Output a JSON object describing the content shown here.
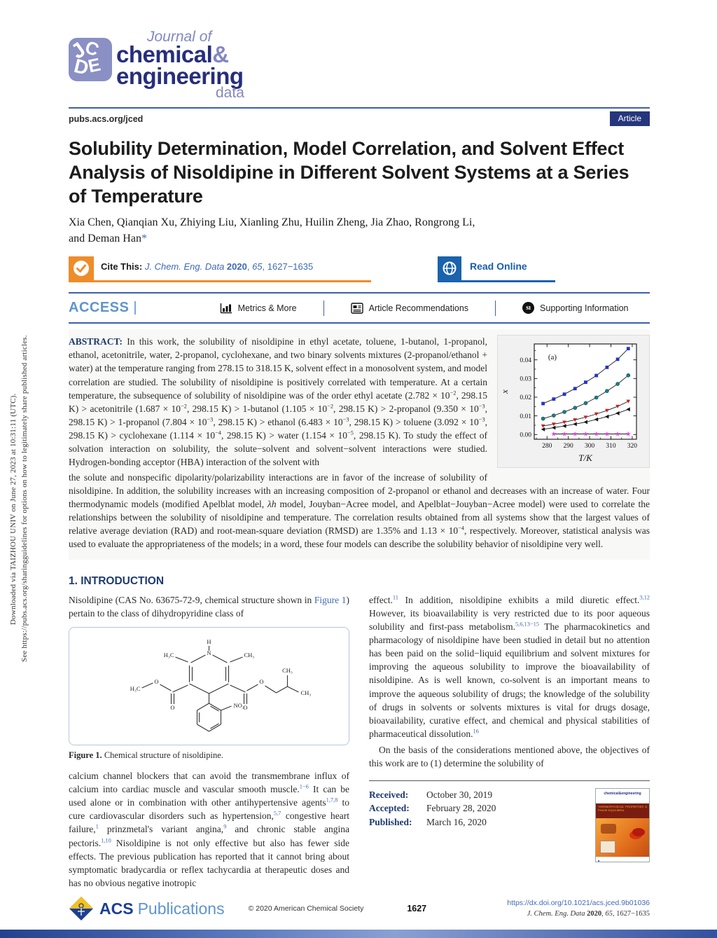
{
  "journal": {
    "icon_letters": {
      "j": "J",
      "c": "C",
      "e": "E",
      "d": "D"
    },
    "name_prefix": "Journal of",
    "name_word1": "chemical",
    "amp": "&",
    "name_word2": "engineering",
    "name_word3": "data",
    "site": "pubs.acs.org/jced",
    "badge": "Article"
  },
  "sidebar": {
    "line1": "Downloaded via TAIZHOU UNIV on June 27, 2023 at 10:31:11 (UTC).",
    "line2": "See https://pubs.acs.org/sharingguidelines for options on how to legitimately share published articles."
  },
  "article": {
    "title": "Solubility Determination, Model Correlation, and Solvent Effect Analysis of Nisoldipine in Different Solvent Systems at a Series of Temperature",
    "authors_line1": "Xia Chen, Qianqian Xu, Zhiying Liu, Xianling Zhu, Huilin Zheng, Jia Zhao, Rongrong Li,",
    "authors_line2": [
      {
        "x": "and Deman Han"
      },
      {
        "x": "*",
        "s": "link"
      }
    ]
  },
  "cite_bar": {
    "cite_label": "Cite This:",
    "cite_ref": [
      {
        "x": "J. Chem. Eng. Data ",
        "s": "i link"
      },
      {
        "x": "2020",
        "s": "b link"
      },
      {
        "x": ", ",
        "s": "link"
      },
      {
        "x": "65",
        "s": "i link"
      },
      {
        "x": ", 1627−1635",
        "s": "link"
      }
    ],
    "read_online": "Read Online"
  },
  "access_bar": {
    "access": "ACCESS",
    "pipe": "|",
    "metrics": "Metrics & More",
    "recommendations": "Article Recommendations",
    "supporting": "Supporting Information",
    "si_glyph": "sı"
  },
  "abstract": {
    "label": "ABSTRACT:",
    "part1": [
      {
        "x": " In this work, the solubility of nisoldipine in ethyl acetate, toluene, 1-butanol, 1-propanol, ethanol, acetonitrile, water, 2-propanol, cyclohexane, and two binary solvents mixtures (2-propanol/ethanol + water) at the temperature ranging from 278.15 to 318.15 K, solvent effect in a monosolvent system, and model correlation are studied. The solubility of nisoldipine is positively correlated with temperature. At a certain temperature, the subsequence of solubility of nisoldipine was of the order ethyl acetate (2.782 × 10"
      },
      {
        "x": "−2",
        "s": "sup"
      },
      {
        "x": ", 298.15 K) > acetonitrile (1.687 × 10"
      },
      {
        "x": "−2",
        "s": "sup"
      },
      {
        "x": ", 298.15 K) > 1-butanol (1.105 × 10"
      },
      {
        "x": "−2",
        "s": "sup"
      },
      {
        "x": ", 298.15 K) > 2-propanol (9.350 × 10"
      },
      {
        "x": "−3",
        "s": "sup"
      },
      {
        "x": ", 298.15 K) > 1-propanol (7.804 × 10"
      },
      {
        "x": "−3",
        "s": "sup"
      },
      {
        "x": ", 298.15 K) > ethanol (6.483 × 10"
      },
      {
        "x": "−3",
        "s": "sup"
      },
      {
        "x": ", 298.15 K) > toluene (3.092 × 10"
      },
      {
        "x": "−3",
        "s": "sup"
      },
      {
        "x": ", 298.15 K) > cyclohexane (1.114 × 10"
      },
      {
        "x": "−4",
        "s": "sup"
      },
      {
        "x": ", 298.15 K) > water (1.154 × 10"
      },
      {
        "x": "−5",
        "s": "sup"
      },
      {
        "x": ", 298.15 K). To study the effect of solvation interaction on solubility, the solute−solvent and solvent−solvent interactions were studied. Hydrogen-bonding acceptor (HBA) interaction of the solvent with"
      }
    ],
    "part2": [
      {
        "x": "the solute and nonspecific dipolarity/polarizability interactions are in favor of the increase of solubility of nisoldipine. In addition, the solubility increases with an increasing composition of 2-propanol or ethanol and decreases with an increase of water. Four thermodynamic models (modified Apelblat model, "
      },
      {
        "x": "λh",
        "s": "i"
      },
      {
        "x": " model, Jouyban−Acree model, and Apelblat−Jouyban−Acree model) were used to correlate the relationships between the solubility of nisoldipine and temperature. The correlation results obtained from all systems show that the largest values of relative average deviation (RAD) and root-mean-square deviation (RMSD) are 1.35% and 1.13 × 10"
      },
      {
        "x": "−4",
        "s": "sup"
      },
      {
        "x": ", respectively. Moreover, statistical analysis was used to evaluate the appropriateness of the models; in a word, these four models can describe the solubility behavior of nisoldipine very well."
      }
    ]
  },
  "chart_data": {
    "type": "line",
    "panel_label": "(a)",
    "xlabel": "T/K",
    "ylabel": "x",
    "xlim": [
      274,
      322
    ],
    "ylim": [
      -0.0025,
      0.0485
    ],
    "xticks": [
      280,
      290,
      300,
      310,
      320
    ],
    "xticks_minor": [
      275,
      285,
      295,
      305,
      315
    ],
    "yticks": [
      0.0,
      0.01,
      0.02,
      0.03,
      0.04
    ],
    "yticks_minor": [
      0.005,
      0.015,
      0.025,
      0.035,
      0.045
    ],
    "grid": false,
    "legend": "none",
    "x": [
      278.15,
      283.15,
      288.15,
      293.15,
      298.15,
      303.15,
      308.15,
      313.15,
      318.15
    ],
    "line_color": "#1a1a1a",
    "series": [
      {
        "name": "blue-squares",
        "marker": "square",
        "color": "#2433c8",
        "values": [
          0.0166,
          0.019,
          0.0216,
          0.0246,
          0.028,
          0.0316,
          0.036,
          0.0403,
          0.046
        ]
      },
      {
        "name": "teal-circles",
        "marker": "circle",
        "color": "#17808a",
        "values": [
          0.0085,
          0.0102,
          0.0121,
          0.0143,
          0.0168,
          0.0198,
          0.0233,
          0.0271,
          0.0317
        ]
      },
      {
        "name": "red-down-triangles",
        "marker": "triangle-down",
        "color": "#d01f1f",
        "values": [
          0.0046,
          0.0056,
          0.0066,
          0.0079,
          0.0093,
          0.011,
          0.0129,
          0.0151,
          0.0178
        ]
      },
      {
        "name": "black-left-triangles",
        "marker": "triangle-left",
        "color": "#101010",
        "values": [
          0.0028,
          0.0037,
          0.0046,
          0.0056,
          0.0067,
          0.0081,
          0.0096,
          0.0114,
          0.0135
        ]
      },
      {
        "name": "magenta-stars",
        "marker": "star",
        "color": "#e838e8",
        "x": [
          283.15,
          288.15,
          293.15,
          298.15,
          303.15,
          308.15,
          313.15,
          318.15
        ],
        "values": [
          0.0003,
          0.0003,
          0.0003,
          0.0003,
          0.0003,
          0.0003,
          0.0003,
          0.0003
        ]
      }
    ]
  },
  "intro": {
    "heading": "1. INTRODUCTION",
    "left_p1": [
      {
        "x": "Nisoldipine (CAS No. 63675-72-9, chemical structure shown in "
      },
      {
        "x": "Figure 1",
        "s": "link"
      },
      {
        "x": ") pertain to the class of dihydropyridine class of"
      }
    ],
    "figure": {
      "caption": [
        {
          "x": "Figure 1.",
          "s": "b"
        },
        {
          "x": " Chemical structure of nisoldipine."
        }
      ],
      "labels": {
        "h": "H",
        "n": "N",
        "ch3_l": "H₃C",
        "ch3_r": "CH₃",
        "h3c": "H₃C",
        "o_l1": "O",
        "o_l2": "O",
        "o_r1": "O",
        "o_r2": "O",
        "ch3_t": "CH₃",
        "ch3_e": "CH₃",
        "no2": "NO₂"
      }
    },
    "left_p2": [
      {
        "x": "calcium channel blockers that can avoid the transmembrane influx of calcium into cardiac muscle and vascular smooth muscle."
      },
      {
        "x": "1−6",
        "s": "sup link"
      },
      {
        "x": " It can be used alone or in combination with other antihypertensive agents"
      },
      {
        "x": "1,7,8",
        "s": "sup link"
      },
      {
        "x": " to cure cardiovascular disorders such as hypertension,"
      },
      {
        "x": "5,7",
        "s": "sup link"
      },
      {
        "x": " congestive heart failure,"
      },
      {
        "x": "1",
        "s": "sup link"
      },
      {
        "x": " prinzmetal's variant angina,"
      },
      {
        "x": "9",
        "s": "sup link"
      },
      {
        "x": " and chronic stable angina pectoris."
      },
      {
        "x": "1,10",
        "s": "sup link"
      },
      {
        "x": " Nisoldipine is not only effective but also has fewer side effects. The previous publication has reported that it cannot bring about symptomatic bradycardia or reflex tachycardia at therapeutic doses and has no obvious negative inotropic"
      }
    ],
    "right_p1": [
      {
        "x": "effect."
      },
      {
        "x": "11",
        "s": "sup link"
      },
      {
        "x": " In addition, nisoldipine exhibits a mild diuretic effect."
      },
      {
        "x": "3,12",
        "s": "sup link"
      },
      {
        "x": " However, its bioavailability is very restricted due to its poor aqueous solubility and first-pass metabolism."
      },
      {
        "x": "5,6,13−15",
        "s": "sup link"
      },
      {
        "x": " The pharmacokinetics and pharmacology of nisoldipine have been studied in detail but no attention has been paid on the solid−liquid equilibrium and solvent mixtures for improving the aqueous solubility to improve the bioavailability of nisoldipine. As is well known, co-solvent is an important means to improve the aqueous solubility of drugs; the knowledge of the solubility of drugs in solvents or solvents mixtures is vital for drugs dosage, bioavailability, curative effect, and chemical and physical stabilities of pharmaceutical dissolution."
      },
      {
        "x": "16",
        "s": "sup link"
      }
    ],
    "right_p2": [
      {
        "x": "On the basis of the considerations mentioned above, the objectives of this work are to (1) determine the solubility of"
      }
    ]
  },
  "dates": {
    "received_label": "Received:",
    "received": "October 30, 2019",
    "accepted_label": "Accepted:",
    "accepted": "February 28, 2020",
    "published_label": "Published:",
    "published": "March 16, 2020"
  },
  "footer": {
    "acs": "ACS",
    "publications": "Publications",
    "copyright": "© 2020 American Chemical Society",
    "page": "1627",
    "doi": "https://dx.doi.org/10.1021/acs.jced.9b01036",
    "journal_ref": [
      {
        "x": "J. Chem. Eng. Data ",
        "s": "i"
      },
      {
        "x": "2020",
        "s": "b"
      },
      {
        "x": ", "
      },
      {
        "x": "65",
        "s": "i"
      },
      {
        "x": ", 1627−1635"
      }
    ]
  }
}
